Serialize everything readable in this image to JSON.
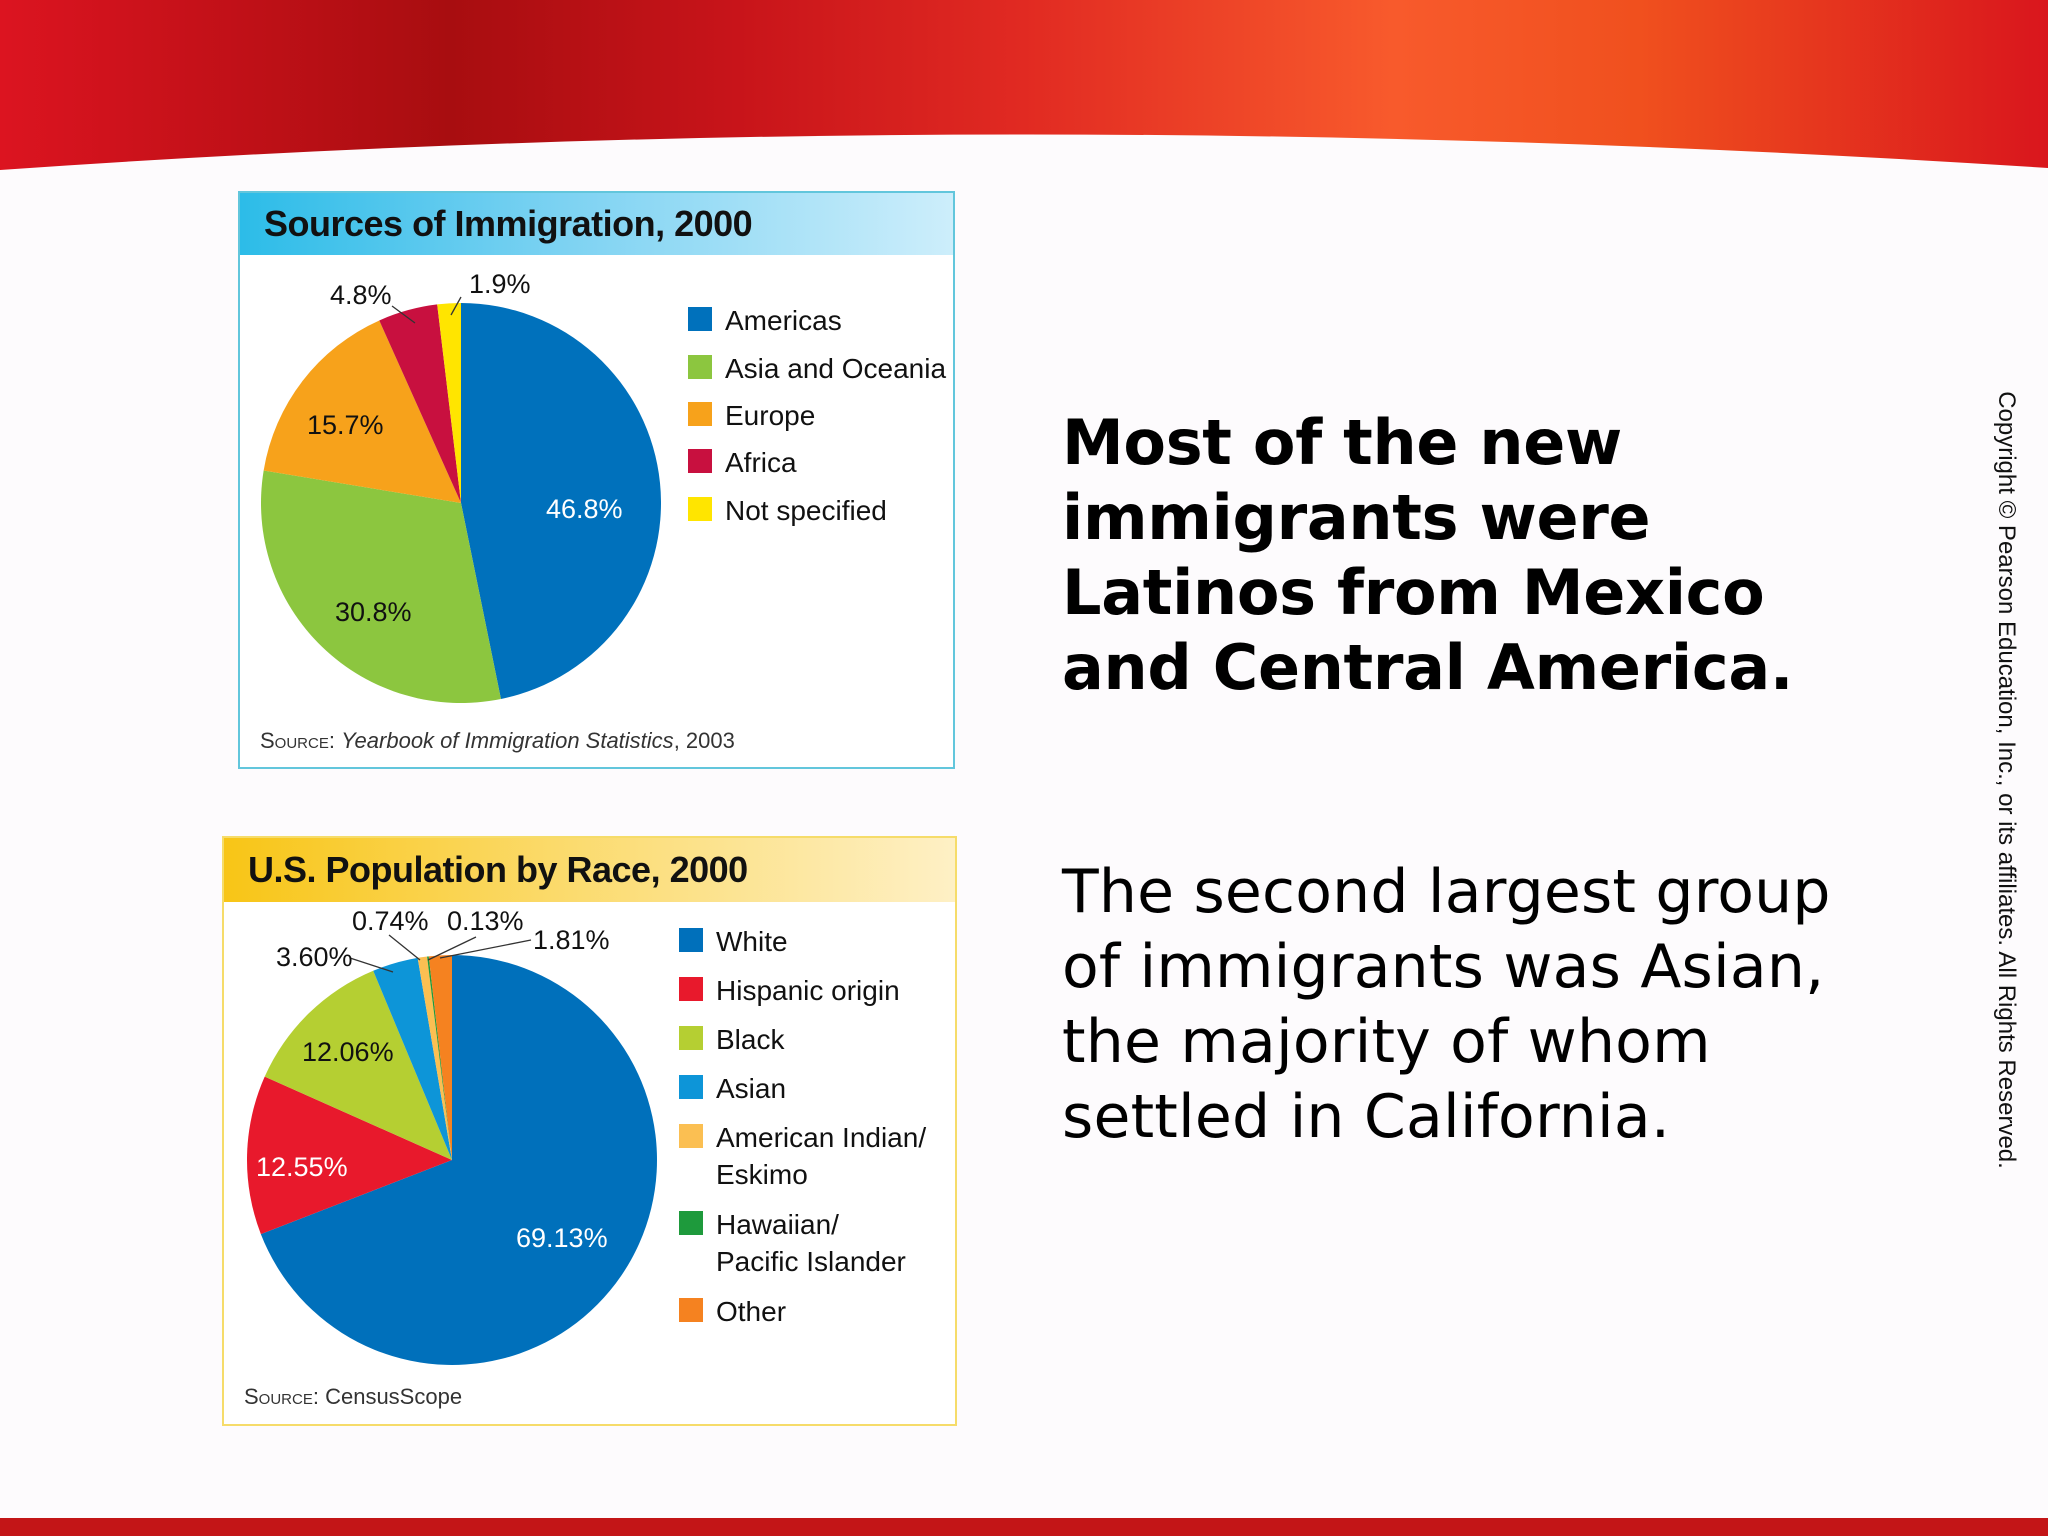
{
  "slide": {
    "headline_lines": [
      "Most of the new",
      "immigrants were",
      "Latinos from Mexico",
      "and Central America."
    ],
    "body_lines": [
      "The second largest group",
      "of immigrants was Asian,",
      "the majority of whom",
      "settled in California."
    ],
    "copyright": "Copyright © Pearson Education, Inc., or its affiliates. All Rights Reserved.",
    "colors": {
      "banner_red": "#d8121c",
      "banner_orange": "#f7552a",
      "bottom_bar": "#c31517"
    }
  },
  "chart_data": [
    {
      "type": "pie",
      "title": "Sources of Immigration, 2000",
      "source_label": "Source:",
      "source_title": "Yearbook of Immigration Statistics",
      "source_suffix": ", 2003",
      "start_angle_deg": 0,
      "direction": "clockwise",
      "categories": [
        "Americas",
        "Asia and Oceania",
        "Europe",
        "Africa",
        "Not specified"
      ],
      "values": [
        46.8,
        30.8,
        15.7,
        4.8,
        1.9
      ],
      "labels": [
        "46.8%",
        "30.8%",
        "15.7%",
        "4.8%",
        "1.9%"
      ],
      "colors": [
        "#0071bc",
        "#8cc63f",
        "#f7a21b",
        "#c8103f",
        "#ffe500"
      ],
      "label_colors": [
        "#ffffff",
        "#111111",
        "#111111",
        "#111111",
        "#111111"
      ],
      "legend_position": "right"
    },
    {
      "type": "pie",
      "title": "U.S. Population by Race, 2000",
      "source_label": "Source:",
      "source_title": "",
      "source_suffix": " CensusScope",
      "start_angle_deg": 0,
      "direction": "clockwise",
      "categories": [
        "White",
        "Hispanic origin",
        "Black",
        "Asian",
        "American Indian/ Eskimo",
        "Hawaiian/ Pacific Islander",
        "Other"
      ],
      "legend_lines": [
        [
          "White"
        ],
        [
          "Hispanic origin"
        ],
        [
          "Black"
        ],
        [
          "Asian"
        ],
        [
          "American Indian/",
          "Eskimo"
        ],
        [
          "Hawaiian/",
          "Pacific Islander"
        ],
        [
          "Other"
        ]
      ],
      "values": [
        69.13,
        12.55,
        12.06,
        3.6,
        0.74,
        0.13,
        1.81
      ],
      "labels": [
        "69.13%",
        "12.55%",
        "12.06%",
        "3.60%",
        "0.74%",
        "0.13%",
        "1.81%"
      ],
      "colors": [
        "#0070bb",
        "#e8192c",
        "#b5cf32",
        "#0d95d8",
        "#fbbf52",
        "#1e9a3c",
        "#f58220"
      ],
      "label_colors": [
        "#ffffff",
        "#ffffff",
        "#111111",
        "#111111",
        "#111111",
        "#111111",
        "#111111"
      ],
      "legend_position": "right"
    }
  ]
}
